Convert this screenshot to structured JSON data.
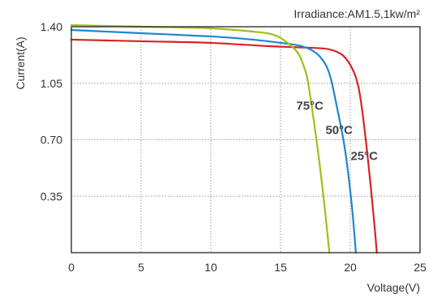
{
  "chart_data": {
    "type": "line",
    "annotation": "Irradiance:AM1.5,1kw/m²",
    "xlabel": "Voltage(V)",
    "ylabel": "Current(A)",
    "xlim": [
      0,
      25
    ],
    "ylim": [
      0,
      1.4
    ],
    "x_ticks": [
      0,
      5,
      10,
      15,
      20,
      25
    ],
    "y_ticks": [
      0.35,
      0.7,
      1.05,
      1.4
    ],
    "x_tick_labels": [
      "0",
      "5",
      "10",
      "15",
      "20",
      "25"
    ],
    "y_tick_labels": [
      "0.35",
      "0.70",
      "1.05",
      "1.40"
    ],
    "grid": true,
    "series": [
      {
        "name": "25°C",
        "color": "#d92323",
        "points": [
          [
            0,
            1.32
          ],
          [
            5,
            1.31
          ],
          [
            10,
            1.3
          ],
          [
            14,
            1.28
          ],
          [
            17,
            1.27
          ],
          [
            18.5,
            1.26
          ],
          [
            19.5,
            1.22
          ],
          [
            20.2,
            1.13
          ],
          [
            20.6,
            1.02
          ],
          [
            20.9,
            0.85
          ],
          [
            21.3,
            0.55
          ],
          [
            21.7,
            0.2
          ],
          [
            21.9,
            0.0
          ]
        ]
      },
      {
        "name": "50°C",
        "color": "#1f86d0",
        "points": [
          [
            0,
            1.38
          ],
          [
            5,
            1.36
          ],
          [
            10,
            1.34
          ],
          [
            13,
            1.32
          ],
          [
            15,
            1.3
          ],
          [
            16.5,
            1.28
          ],
          [
            17.5,
            1.24
          ],
          [
            18.2,
            1.17
          ],
          [
            18.6,
            1.08
          ],
          [
            19,
            0.92
          ],
          [
            19.6,
            0.65
          ],
          [
            20.1,
            0.3
          ],
          [
            20.4,
            0.0
          ]
        ]
      },
      {
        "name": "75°C",
        "color": "#9cc11a",
        "points": [
          [
            0,
            1.41
          ],
          [
            5,
            1.4
          ],
          [
            10,
            1.39
          ],
          [
            13,
            1.37
          ],
          [
            14.5,
            1.35
          ],
          [
            15.5,
            1.3
          ],
          [
            16.3,
            1.23
          ],
          [
            16.8,
            1.12
          ],
          [
            17.0,
            1.04
          ],
          [
            17.3,
            0.87
          ],
          [
            17.8,
            0.55
          ],
          [
            18.2,
            0.25
          ],
          [
            18.5,
            0.0
          ]
        ]
      }
    ],
    "series_labels_at": [
      [
        21.0,
        0.6
      ],
      [
        19.2,
        0.76
      ],
      [
        17.1,
        0.91
      ]
    ]
  }
}
